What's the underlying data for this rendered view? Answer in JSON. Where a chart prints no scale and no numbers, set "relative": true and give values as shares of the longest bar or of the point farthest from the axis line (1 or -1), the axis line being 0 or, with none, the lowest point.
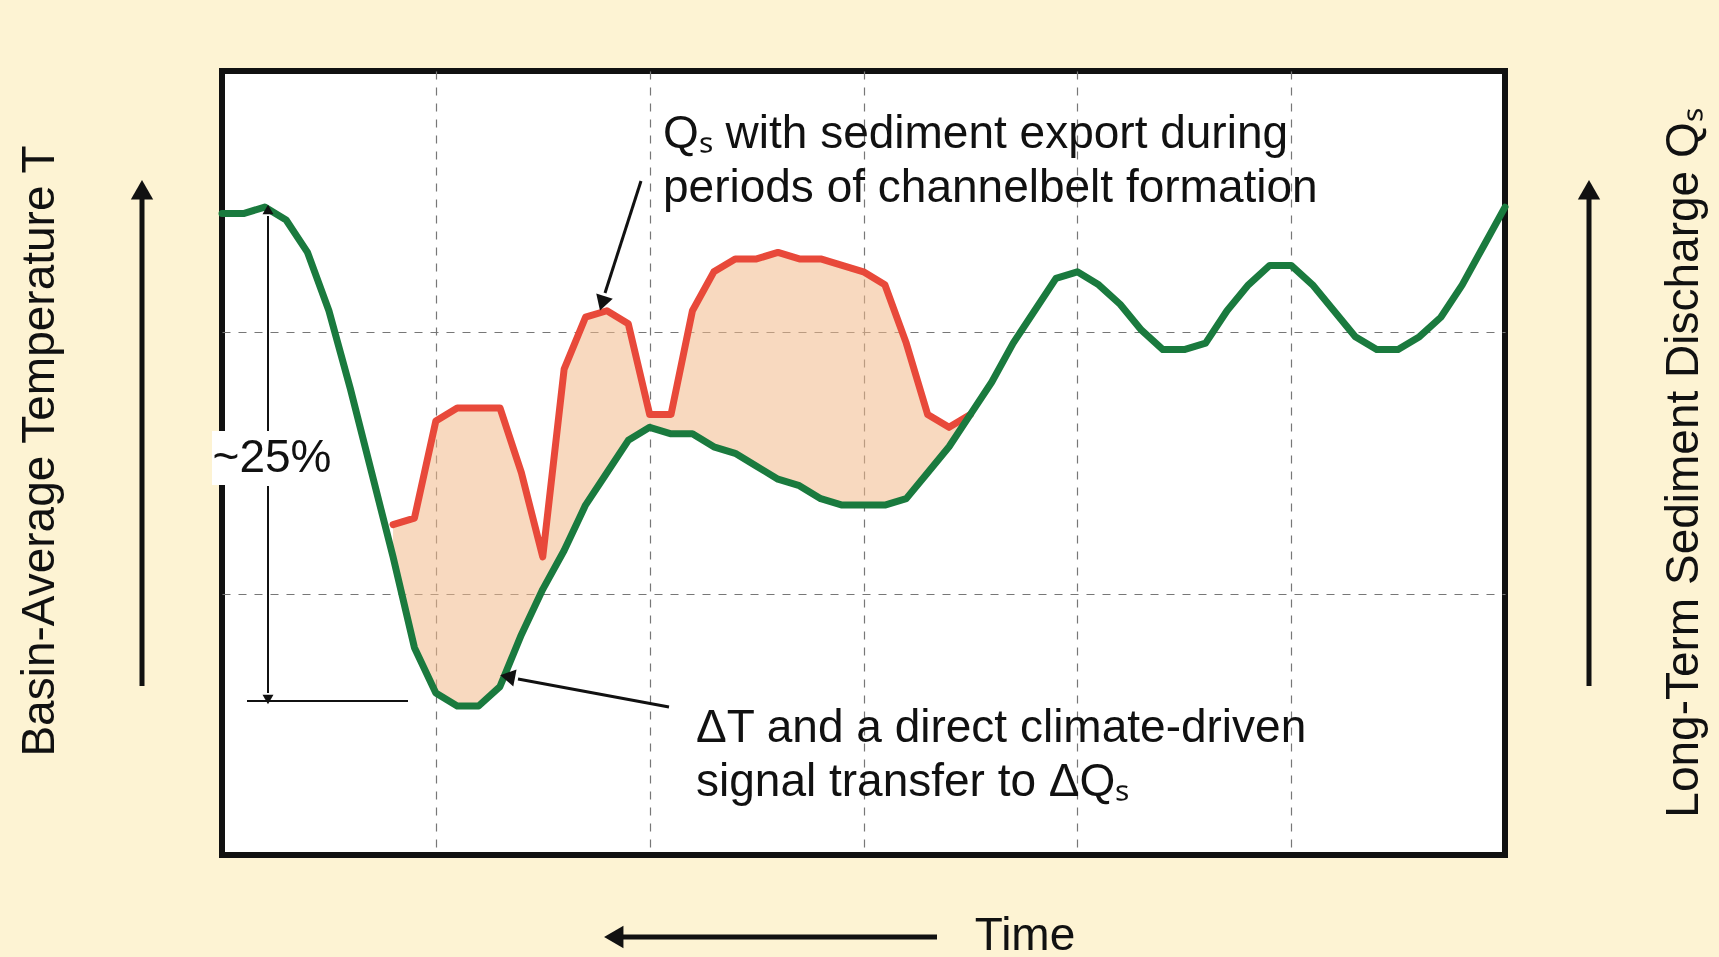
{
  "chart_data": {
    "type": "line",
    "relative": true,
    "grid": true,
    "ylabel": "Basin-Average Temperature T",
    "y2label": "Long-Term Sediment Discharge Qₛ",
    "xlabel": "Time",
    "annotations": [
      "Qₛ with sediment export during\nperiods of channelbelt formation",
      "ΔT and a direct climate-driven\nsignal transfer to ΔQₛ",
      "~25%"
    ],
    "categories": [
      null,
      null,
      null,
      null,
      null,
      null,
      null,
      null,
      null,
      null,
      null,
      null,
      null,
      null,
      null,
      null,
      null,
      null,
      null,
      null,
      null,
      null,
      null,
      null,
      null,
      null,
      null,
      null,
      null,
      null,
      null,
      null,
      null,
      null,
      null,
      null,
      null,
      null,
      null,
      null,
      null,
      null,
      null,
      null,
      null,
      null,
      null,
      null,
      null,
      null,
      null,
      null,
      null,
      null,
      null,
      null,
      null,
      null,
      null,
      null,
      null
    ],
    "series": [
      {
        "color": "#e8493a",
        "values": [
          null,
          null,
          null,
          null,
          null,
          null,
          null,
          null,
          0.51,
          0.52,
          0.67,
          0.69,
          0.69,
          0.69,
          0.59,
          0.46,
          0.75,
          0.83,
          0.84,
          0.82,
          0.68,
          0.68,
          0.84,
          0.9,
          0.92,
          0.92,
          0.93,
          0.92,
          0.92,
          0.91,
          0.9,
          0.88,
          0.79,
          0.68,
          0.66,
          0.68,
          null,
          null,
          null,
          null,
          null,
          null,
          null,
          null,
          null,
          null,
          null,
          null,
          null,
          null,
          null,
          null,
          null,
          null,
          null,
          null,
          null,
          null,
          null,
          null,
          null
        ],
        "lower": [
          null,
          null,
          null,
          null,
          null,
          null,
          null,
          null,
          0.46,
          0.32,
          0.25,
          0.23,
          0.23,
          0.26,
          0.34,
          0.41,
          0.47,
          0.54,
          0.59,
          0.64,
          0.66,
          0.65,
          0.65,
          0.63,
          0.62,
          0.6,
          0.58,
          0.57,
          0.55,
          0.54,
          0.54,
          0.54,
          0.55,
          0.59,
          0.63,
          0.68,
          null,
          null,
          null,
          null,
          null,
          null,
          null,
          null,
          null,
          null,
          null,
          null,
          null,
          null,
          null,
          null,
          null,
          null,
          null,
          null,
          null,
          null,
          null,
          null,
          null
        ],
        "upper": [
          null,
          null,
          null,
          null,
          null,
          null,
          null,
          null,
          0.51,
          0.52,
          0.67,
          0.69,
          0.69,
          0.69,
          0.59,
          0.46,
          0.75,
          0.83,
          0.84,
          0.82,
          0.68,
          0.68,
          0.84,
          0.9,
          0.92,
          0.92,
          0.93,
          0.92,
          0.92,
          0.91,
          0.9,
          0.88,
          0.79,
          0.68,
          0.66,
          0.68,
          null,
          null,
          null,
          null,
          null,
          null,
          null,
          null,
          null,
          null,
          null,
          null,
          null,
          null,
          null,
          null,
          null,
          null,
          null,
          null,
          null,
          null,
          null,
          null,
          null
        ]
      },
      {
        "color": "#1a7a3e",
        "values": [
          0.99,
          0.99,
          1.0,
          0.98,
          0.93,
          0.84,
          0.72,
          0.59,
          0.46,
          0.32,
          0.25,
          0.23,
          0.23,
          0.26,
          0.34,
          0.41,
          0.47,
          0.54,
          0.59,
          0.64,
          0.66,
          0.65,
          0.65,
          0.63,
          0.62,
          0.6,
          0.58,
          0.57,
          0.55,
          0.54,
          0.54,
          0.54,
          0.55,
          0.59,
          0.63,
          0.68,
          0.73,
          0.79,
          0.84,
          0.89,
          0.9,
          0.88,
          0.85,
          0.81,
          0.78,
          0.78,
          0.79,
          0.84,
          0.88,
          0.91,
          0.91,
          0.88,
          0.84,
          0.8,
          0.78,
          0.78,
          0.8,
          0.83,
          0.88,
          0.94,
          1.0
        ]
      }
    ]
  }
}
